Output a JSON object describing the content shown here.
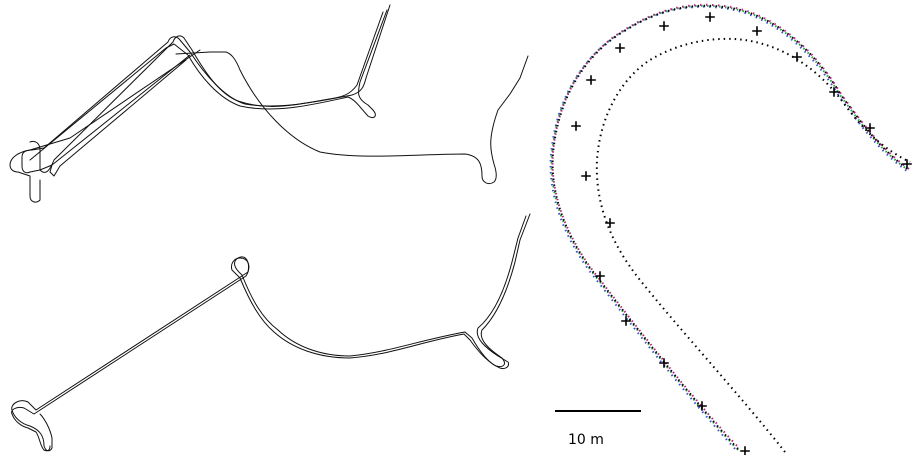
{
  "scale_bar": {
    "label": "10 m"
  },
  "colors": {
    "trace": "#111111",
    "dot_black": "#000000",
    "dot_green": "#1faa3a",
    "dot_magenta": "#c0208a",
    "dot_blue": "#3a4fd0",
    "background": "#ffffff"
  },
  "icons": {
    "marker": "plus-marker-icon"
  }
}
